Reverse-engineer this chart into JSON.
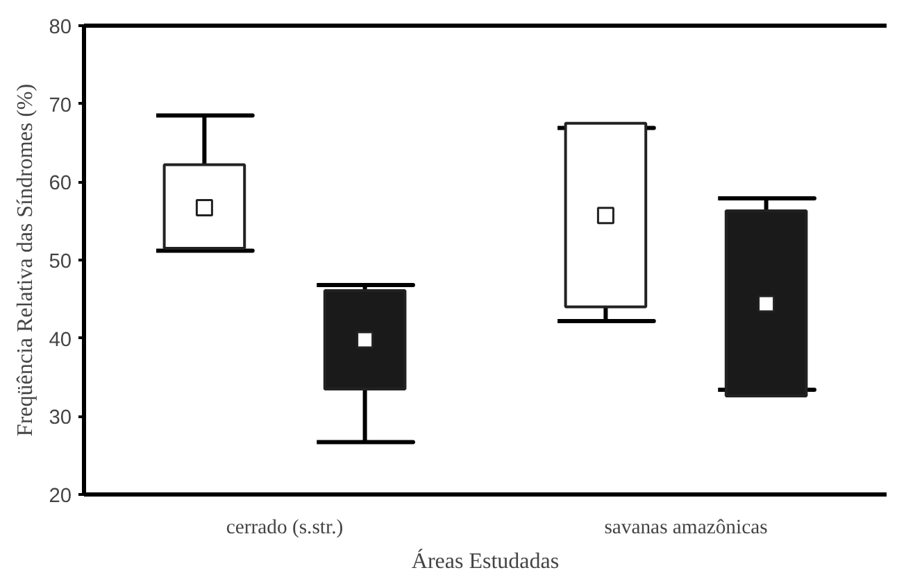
{
  "chart_data": {
    "type": "box",
    "xlabel": "Áreas Estudadas",
    "ylabel": "Freqüência Relativa das Síndromes (%)",
    "categories": [
      "cerrado (s.str.)",
      "savanas amazônicas"
    ],
    "ylim": [
      20,
      80
    ],
    "yticks": [
      20,
      30,
      40,
      50,
      60,
      70,
      80
    ],
    "grid": false,
    "series": [
      {
        "color": "#ffffff",
        "boxes": [
          {
            "low": 51.2,
            "q1": 51.5,
            "median": 56.7,
            "q3": 62.2,
            "high": 68.5
          },
          {
            "low": 42.2,
            "q1": 44.0,
            "median": 55.7,
            "q3": 67.5,
            "high": 66.9
          }
        ]
      },
      {
        "color": "#1a1a1a",
        "boxes": [
          {
            "low": 26.7,
            "q1": 33.5,
            "median": 39.8,
            "q3": 46.1,
            "high": 46.8
          },
          {
            "low": 33.4,
            "q1": 32.6,
            "median": 44.4,
            "q3": 56.3,
            "high": 57.9
          }
        ]
      }
    ]
  }
}
